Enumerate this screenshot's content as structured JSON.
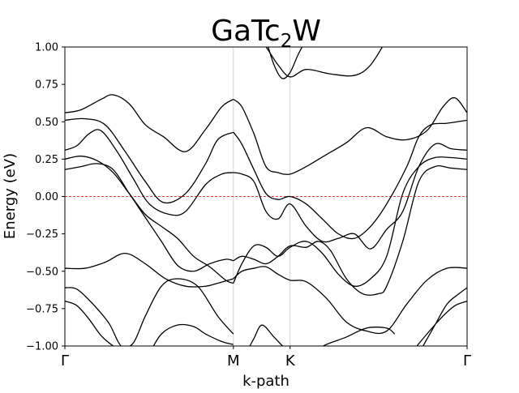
{
  "chart_data": {
    "type": "line",
    "title": {
      "main": "GaTc",
      "sub": "2",
      "tail": "W"
    },
    "xlabel": "k-path",
    "ylabel": "Energy (eV)",
    "ylim": [
      -1.0,
      1.0
    ],
    "xlim": [
      0,
      1
    ],
    "yticks": [
      {
        "value": 1.0,
        "label": "1.00"
      },
      {
        "value": 0.75,
        "label": "0.75"
      },
      {
        "value": 0.5,
        "label": "0.50"
      },
      {
        "value": 0.25,
        "label": "0.25"
      },
      {
        "value": 0.0,
        "label": "0.00"
      },
      {
        "value": -0.25,
        "label": "−0.25"
      },
      {
        "value": -0.5,
        "label": "−0.50"
      },
      {
        "value": -0.75,
        "label": "−0.75"
      },
      {
        "value": -1.0,
        "label": "−1.00"
      }
    ],
    "high_symmetry_points": [
      {
        "label": "Γ",
        "x": 0.0
      },
      {
        "label": "M",
        "x": 0.419
      },
      {
        "label": "K",
        "x": 0.56
      },
      {
        "label": "Γ",
        "x": 1.0
      }
    ],
    "fermi_level": 0.0,
    "colors": {
      "band": "#000000",
      "fermi": "#e00000",
      "vline": "#c8c8c8"
    },
    "grid": false,
    "series": [
      {
        "x": [
          0.0,
          0.04,
          0.09,
          0.12,
          0.16,
          0.2,
          0.245,
          0.3,
          0.35,
          0.39,
          0.419
        ],
        "y": [
          0.56,
          0.58,
          0.65,
          0.68,
          0.62,
          0.48,
          0.4,
          0.3,
          0.45,
          0.6,
          0.65
        ]
      },
      {
        "x": [
          0.0,
          0.05,
          0.1,
          0.15,
          0.2,
          0.245,
          0.3,
          0.35,
          0.38,
          0.419
        ],
        "y": [
          0.51,
          0.52,
          0.48,
          0.3,
          0.1,
          -0.04,
          0.02,
          0.22,
          0.38,
          0.43
        ]
      },
      {
        "x": [
          0.0,
          0.03,
          0.06,
          0.09,
          0.13,
          0.17,
          0.21,
          0.26,
          0.3,
          0.35,
          0.39,
          0.419
        ],
        "y": [
          0.31,
          0.34,
          0.42,
          0.44,
          0.3,
          0.12,
          -0.05,
          -0.12,
          -0.1,
          0.08,
          0.15,
          0.16
        ]
      },
      {
        "x": [
          0.0,
          0.04,
          0.08,
          0.12,
          0.16,
          0.2,
          0.24,
          0.28,
          0.32,
          0.36,
          0.4,
          0.419
        ],
        "y": [
          0.25,
          0.27,
          0.24,
          0.16,
          0.02,
          -0.12,
          -0.2,
          -0.28,
          -0.4,
          -0.47,
          -0.56,
          -0.58
        ]
      },
      {
        "x": [
          0.0,
          0.04,
          0.08,
          0.12,
          0.16,
          0.2,
          0.24,
          0.28,
          0.32,
          0.36,
          0.4,
          0.419
        ],
        "y": [
          0.18,
          0.2,
          0.22,
          0.18,
          0.02,
          -0.14,
          -0.3,
          -0.46,
          -0.5,
          -0.45,
          -0.42,
          -0.43
        ]
      },
      {
        "x": [
          0.0,
          0.05,
          0.1,
          0.15,
          0.2,
          0.25,
          0.3,
          0.35,
          0.38,
          0.419
        ],
        "y": [
          -0.48,
          -0.48,
          -0.44,
          -0.38,
          -0.45,
          -0.55,
          -0.6,
          -0.6,
          -0.58,
          -0.55
        ]
      },
      {
        "x": [
          0.0,
          0.03,
          0.07,
          0.11,
          0.14,
          0.17,
          0.2,
          0.24,
          0.28,
          0.33,
          0.38,
          0.419
        ],
        "y": [
          -0.61,
          -0.62,
          -0.72,
          -0.85,
          -1.0,
          -0.98,
          -0.8,
          -0.6,
          -0.55,
          -0.6,
          -0.8,
          -0.92
        ]
      },
      {
        "x": [
          0.0,
          0.03,
          0.06,
          0.09,
          0.12,
          0.15
        ],
        "y": [
          -0.7,
          -0.73,
          -0.82,
          -0.93,
          -1.0,
          -1.05
        ]
      },
      {
        "x": [
          0.21,
          0.24,
          0.28,
          0.32,
          0.35,
          0.39,
          0.419
        ],
        "y": [
          -1.05,
          -0.92,
          -0.86,
          -0.87,
          -0.92,
          -0.97,
          -0.99
        ]
      },
      {
        "x": [
          0.419,
          0.44,
          0.47,
          0.5,
          0.53,
          0.56,
          0.6,
          0.65,
          0.7,
          0.75,
          0.8,
          0.85,
          0.9,
          0.94,
          0.97,
          1.0
        ],
        "y": [
          0.65,
          0.6,
          0.42,
          0.2,
          0.16,
          0.15,
          0.2,
          0.28,
          0.36,
          0.46,
          0.4,
          0.38,
          0.44,
          0.6,
          0.66,
          0.56
        ]
      },
      {
        "x": [
          0.419,
          0.44,
          0.47,
          0.5,
          0.53,
          0.56,
          0.6,
          0.64,
          0.68,
          0.72,
          0.76,
          0.8,
          0.85,
          0.88,
          0.91,
          0.95,
          1.0
        ],
        "y": [
          0.43,
          0.35,
          0.18,
          0.02,
          -0.02,
          0.0,
          -0.05,
          -0.15,
          -0.25,
          -0.28,
          -0.2,
          -0.05,
          0.2,
          0.4,
          0.48,
          0.49,
          0.51
        ]
      },
      {
        "x": [
          0.419,
          0.44,
          0.47,
          0.5,
          0.53,
          0.56,
          0.6,
          0.64,
          0.68,
          0.72,
          0.76,
          0.8,
          0.84,
          0.88,
          0.92,
          0.96,
          1.0
        ],
        "y": [
          0.16,
          0.15,
          0.1,
          -0.1,
          -0.15,
          -0.05,
          -0.2,
          -0.3,
          -0.28,
          -0.25,
          -0.35,
          -0.22,
          -0.1,
          0.2,
          0.35,
          0.32,
          0.31
        ]
      },
      {
        "x": [
          0.419,
          0.44,
          0.47,
          0.5,
          0.53,
          0.56,
          0.6,
          0.64,
          0.68,
          0.72,
          0.76,
          0.8,
          0.84,
          0.88,
          0.92,
          0.96,
          1.0
        ],
        "y": [
          -0.58,
          -0.45,
          -0.33,
          -0.34,
          -0.4,
          -0.34,
          -0.3,
          -0.38,
          -0.52,
          -0.6,
          -0.55,
          -0.4,
          0.02,
          0.2,
          0.26,
          0.26,
          0.25
        ]
      },
      {
        "x": [
          0.419,
          0.44,
          0.47,
          0.5,
          0.53,
          0.56,
          0.6,
          0.63,
          0.66,
          0.7,
          0.74,
          0.78,
          0.8,
          0.84,
          0.88,
          0.92,
          0.96,
          1.0
        ],
        "y": [
          -0.43,
          -0.4,
          -0.42,
          -0.45,
          -0.4,
          -0.33,
          -0.34,
          -0.3,
          -0.36,
          -0.55,
          -0.65,
          -0.65,
          -0.6,
          -0.3,
          0.1,
          0.2,
          0.19,
          0.18
        ]
      },
      {
        "x": [
          0.419,
          0.44,
          0.47,
          0.5,
          0.53,
          0.56,
          0.6,
          0.65,
          0.7,
          0.75,
          0.8,
          0.85,
          0.9,
          0.95,
          1.0
        ],
        "y": [
          -0.55,
          -0.5,
          -0.48,
          -0.47,
          -0.52,
          -0.56,
          -0.57,
          -0.68,
          -0.84,
          -0.9,
          -0.9,
          -0.72,
          -0.56,
          -0.48,
          -0.48
        ]
      },
      {
        "x": [
          0.45,
          0.47,
          0.49,
          0.52,
          0.55,
          0.58
        ],
        "y": [
          -1.05,
          -0.95,
          -0.86,
          -0.94,
          -1.02,
          -1.05
        ]
      },
      {
        "x": [
          0.61,
          0.65,
          0.7,
          0.75,
          0.8,
          0.82
        ],
        "y": [
          -1.05,
          -0.99,
          -0.94,
          -0.88,
          -0.88,
          -0.92
        ]
      },
      {
        "x": [
          0.86,
          0.9,
          0.94,
          0.97,
          1.0
        ],
        "y": [
          -1.05,
          -0.92,
          -0.8,
          -0.73,
          -0.7
        ]
      },
      {
        "x": [
          0.88,
          0.92,
          0.95,
          0.98,
          1.0
        ],
        "y": [
          -1.05,
          -0.86,
          -0.72,
          -0.65,
          -0.61
        ]
      },
      {
        "x": [
          0.48,
          0.5,
          0.53,
          0.56,
          0.6,
          0.66,
          0.72,
          0.76,
          0.8
        ],
        "y": [
          1.05,
          1.0,
          0.88,
          0.8,
          0.85,
          0.82,
          0.81,
          0.88,
          1.05
        ]
      },
      {
        "x": [
          0.5,
          0.52,
          0.54,
          0.56,
          0.58,
          0.6
        ],
        "y": [
          1.05,
          0.88,
          0.79,
          0.83,
          0.95,
          1.05
        ]
      }
    ]
  }
}
